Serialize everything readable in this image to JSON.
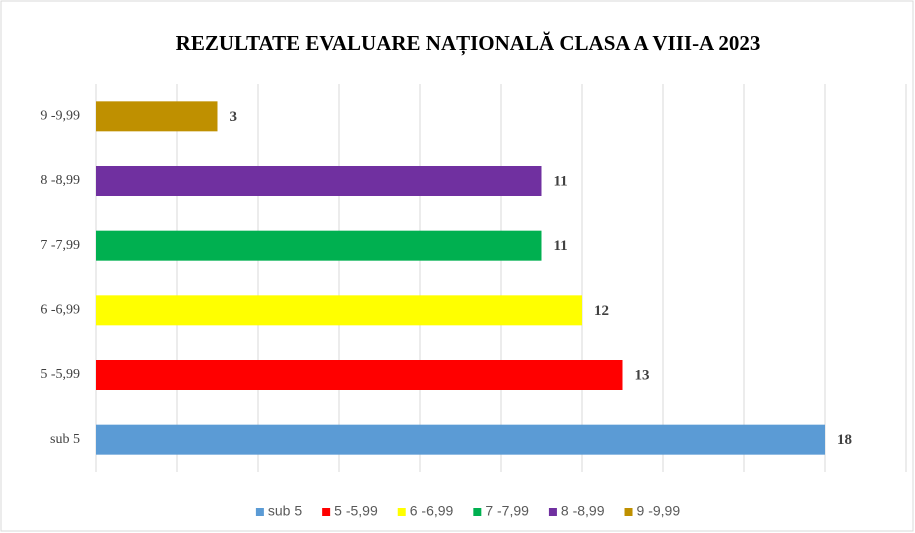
{
  "chart_data": {
    "type": "bar",
    "orientation": "horizontal",
    "title": "REZULTATE EVALUARE NAȚIONALĂ CLASA A VIII-A  2023",
    "categories": [
      "sub 5",
      "5 -5,99",
      "6 -6,99",
      "7 -7,99",
      "8 -8,99",
      "9 -9,99"
    ],
    "values": [
      18,
      13,
      12,
      11,
      11,
      3
    ],
    "colors": [
      "#5b9bd5",
      "#ff0000",
      "#ffff00",
      "#00b050",
      "#7030a0",
      "#bf9000"
    ],
    "xlim": [
      0,
      20
    ],
    "xticks": [
      0,
      2,
      4,
      6,
      8,
      10,
      12,
      14,
      16,
      18,
      20
    ],
    "grid": true,
    "legend": "bottom"
  }
}
